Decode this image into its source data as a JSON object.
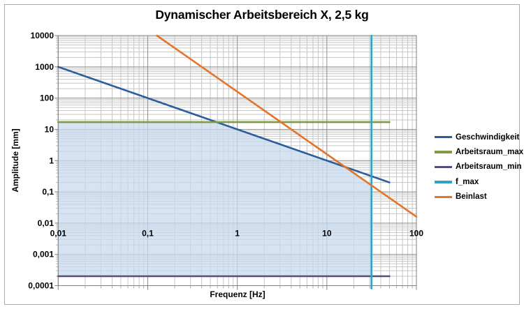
{
  "chart_data": {
    "type": "line",
    "title": "Dynamischer Arbeitsbereich X, 2,5 kg",
    "xlabel": "Frequenz [Hz]",
    "ylabel": "Amplitude [mm]",
    "x_scale": "log",
    "y_scale": "log",
    "xlim": [
      0.01,
      100
    ],
    "ylim": [
      0.0001,
      10000
    ],
    "grid": "major and minor log gridlines, both axes",
    "legend_position": "right",
    "x_ticks": [
      {
        "label": "0,01",
        "value": 0.01
      },
      {
        "label": "0,1",
        "value": 0.1
      },
      {
        "label": "1",
        "value": 1
      },
      {
        "label": "10",
        "value": 10
      },
      {
        "label": "100",
        "value": 100
      }
    ],
    "y_ticks": [
      {
        "label": "10000",
        "value": 10000
      },
      {
        "label": "1000",
        "value": 1000
      },
      {
        "label": "100",
        "value": 100
      },
      {
        "label": "10",
        "value": 10
      },
      {
        "label": "1",
        "value": 1
      },
      {
        "label": "0,1",
        "value": 0.1
      },
      {
        "label": "0,01",
        "value": 0.01
      },
      {
        "label": "0,001",
        "value": 0.001
      },
      {
        "label": "0,0001",
        "value": 0.0001
      }
    ],
    "series": [
      {
        "name": "Geschwindigkeit",
        "color": "#2B5C9C",
        "points": [
          [
            0.01,
            1000
          ],
          [
            50,
            0.2
          ]
        ]
      },
      {
        "name": "Arbeitsraum_max",
        "color": "#7E9B44",
        "points": [
          [
            0.01,
            17
          ],
          [
            50,
            17
          ]
        ]
      },
      {
        "name": "Arbeitsraum_min",
        "color": "#5B4B7C",
        "points": [
          [
            0.01,
            0.0002
          ],
          [
            50,
            0.0002
          ]
        ]
      },
      {
        "name": "f_max",
        "color": "#2EA3C6",
        "points": [
          [
            31.5,
            10000
          ],
          [
            31.5,
            0.0001
          ]
        ]
      },
      {
        "name": "Beinlast",
        "color": "#E2752B",
        "points": [
          [
            0.1265,
            10000
          ],
          [
            100,
            0.016
          ]
        ]
      }
    ],
    "shaded_region": {
      "color": "#C7DAEE",
      "opacity": 0.75,
      "points": [
        [
          0.01,
          17
        ],
        [
          0.588,
          17
        ],
        [
          16,
          0.625
        ],
        [
          31.5,
          0.161
        ],
        [
          31.5,
          0.0002
        ],
        [
          0.01,
          0.0002
        ]
      ]
    }
  },
  "colors": {
    "frame_border": "#ABABAB",
    "plot_border": "#7F7F7F",
    "grid_major": "#8E8E8E",
    "grid_minor": "#C6C6C6",
    "tick_major": "#7F7F7F",
    "tick_minor": "#ABABAB",
    "text": "#000000"
  }
}
